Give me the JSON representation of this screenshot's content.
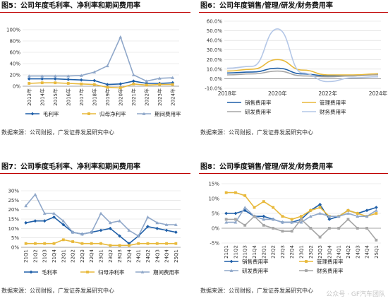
{
  "charts": [
    {
      "title": "图5：公司年度毛利率、净利率和期间费用率",
      "source": "数据来源：公司财报，广发证券发展研究中心",
      "chart_data": {
        "type": "line",
        "categories": [
          "2013年",
          "2014年",
          "2015年",
          "2016年",
          "2017年",
          "2018年",
          "2019年",
          "2020年",
          "2021年",
          "2022年",
          "2023年",
          "2024年"
        ],
        "ylim": [
          0,
          100
        ],
        "yticks": [
          "0%",
          "20%",
          "40%",
          "60%",
          "80%",
          "100%"
        ],
        "series": [
          {
            "name": "毛利率",
            "color": "#1f5fa8",
            "marker": "diamond",
            "values": [
              13,
              13,
              13,
              12,
              11,
              10,
              3,
              4,
              9,
              5,
              5,
              6
            ]
          },
          {
            "name": "归母净利率",
            "color": "#e8b93b",
            "marker": "square",
            "values": [
              5,
              6,
              6,
              5,
              4,
              3,
              -2,
              -3,
              4,
              2,
              3,
              3
            ]
          },
          {
            "name": "期间费用率",
            "color": "#8fa7c9",
            "marker": "triangle",
            "values": [
              18,
              18,
              18,
              18,
              19,
              25,
              36,
              87,
              20,
              9,
              14,
              15
            ]
          }
        ]
      }
    },
    {
      "title": "图6：公司年度销售/管理/研发/财务费用率",
      "source": "数据来源：公司财报，广发证券发展研究中心",
      "chart_data": {
        "type": "line",
        "x": [
          2018,
          2019,
          2020,
          2021,
          2022,
          2023,
          2024
        ],
        "xticks": [
          "2018年",
          "2020年",
          "2022年",
          "2024年"
        ],
        "ylim": [
          -10,
          60
        ],
        "yticks": [
          "-10.0%",
          "0.0%",
          "10.0%",
          "20.0%",
          "30.0%",
          "40.0%",
          "50.0%",
          "60.0%"
        ],
        "series": [
          {
            "name": "销售费用率",
            "color": "#1f5fa8",
            "values": [
              6,
              7,
              11,
              5,
              3,
              3,
              5
            ]
          },
          {
            "name": "管理费用率",
            "color": "#e8b93b",
            "values": [
              8,
              10,
              20,
              9,
              4,
              4,
              5
            ]
          },
          {
            "name": "研发费用率",
            "color": "#a6a6a6",
            "values": [
              4,
              5,
              8,
              3,
              2,
              3,
              4
            ]
          },
          {
            "name": "财务费用率",
            "color": "#b4c7e7",
            "values": [
              11,
              13,
              52,
              6,
              -3,
              1,
              2
            ]
          }
        ]
      }
    },
    {
      "title": "图7：公司季度毛利率、净利率和期间费用率",
      "source": "数据来源：公司财报，广发证券发展研究中心",
      "chart_data": {
        "type": "line",
        "categories": [
          "21Q1",
          "21Q2",
          "21Q3",
          "21Q4",
          "22Q1",
          "22Q2",
          "22Q3",
          "22Q4",
          "23Q1",
          "23Q2",
          "23Q3",
          "23Q4",
          "24Q1",
          "24Q2",
          "24Q3",
          "24Q4",
          "25Q1"
        ],
        "ylim": [
          0,
          30
        ],
        "yticks": [
          "0%",
          "5%",
          "10%",
          "15%",
          "20%",
          "25%",
          "30%"
        ],
        "series": [
          {
            "name": "毛利率",
            "color": "#1f5fa8",
            "marker": "diamond",
            "values": [
              13,
              14,
              14,
              16,
              12,
              8,
              7,
              8,
              9,
              10,
              6,
              2,
              6,
              11,
              10,
              9,
              8
            ]
          },
          {
            "name": "归母净利率",
            "color": "#e8b93b",
            "marker": "square",
            "values": [
              2,
              2,
              2,
              2,
              4,
              3,
              2,
              2,
              2,
              1,
              1,
              1,
              2,
              2,
              2,
              2,
              2
            ]
          },
          {
            "name": "期间费用率",
            "color": "#8fa7c9",
            "marker": "triangle",
            "values": [
              22,
              28,
              18,
              18,
              14,
              8,
              7,
              8,
              18,
              13,
              14,
              9,
              6,
              16,
              13,
              12,
              12
            ]
          }
        ]
      }
    },
    {
      "title": "图8：公司季度销售/管理/研发/财务费用率",
      "source": "数据来源：公司财报，广发证券发展研究中心",
      "chart_data": {
        "type": "line",
        "categories": [
          "21Q1",
          "21Q2",
          "21Q3",
          "21Q4",
          "22Q1",
          "22Q2",
          "22Q3",
          "22Q4",
          "23Q1",
          "23Q2",
          "23Q3",
          "23Q4",
          "24Q1",
          "24Q2",
          "24Q3",
          "24Q4",
          "25Q1"
        ],
        "ylim": [
          -5,
          15
        ],
        "yticks": [
          "-5%",
          "0%",
          "5%",
          "10%",
          "15%"
        ],
        "series": [
          {
            "name": "销售费用率",
            "color": "#1f5fa8",
            "marker": "diamond",
            "values": [
              5,
              5,
              6,
              4,
              4,
              3,
              2,
              2,
              3,
              6,
              8,
              3,
              4,
              6,
              5,
              6,
              7
            ]
          },
          {
            "name": "管理费用率",
            "color": "#e8b93b",
            "marker": "square",
            "values": [
              12,
              12,
              11,
              7,
              9,
              7,
              4,
              3,
              4,
              6,
              7,
              4,
              4,
              6,
              5,
              4,
              5
            ]
          },
          {
            "name": "研发费用率",
            "color": "#8fa7c9",
            "marker": "triangle",
            "values": [
              2,
              2,
              7,
              4,
              3,
              3,
              2,
              2,
              2,
              4,
              5,
              4,
              4,
              5,
              4,
              4,
              6
            ]
          },
          {
            "name": "财务费用率",
            "color": "#a6a6a6",
            "marker": "square",
            "values": [
              3,
              3,
              1,
              4,
              1,
              0,
              -1,
              -1,
              3,
              0,
              -3,
              0,
              0,
              3,
              0,
              0,
              -4
            ]
          }
        ]
      }
    }
  ],
  "watermark": "公众号 · GF汽车团队"
}
